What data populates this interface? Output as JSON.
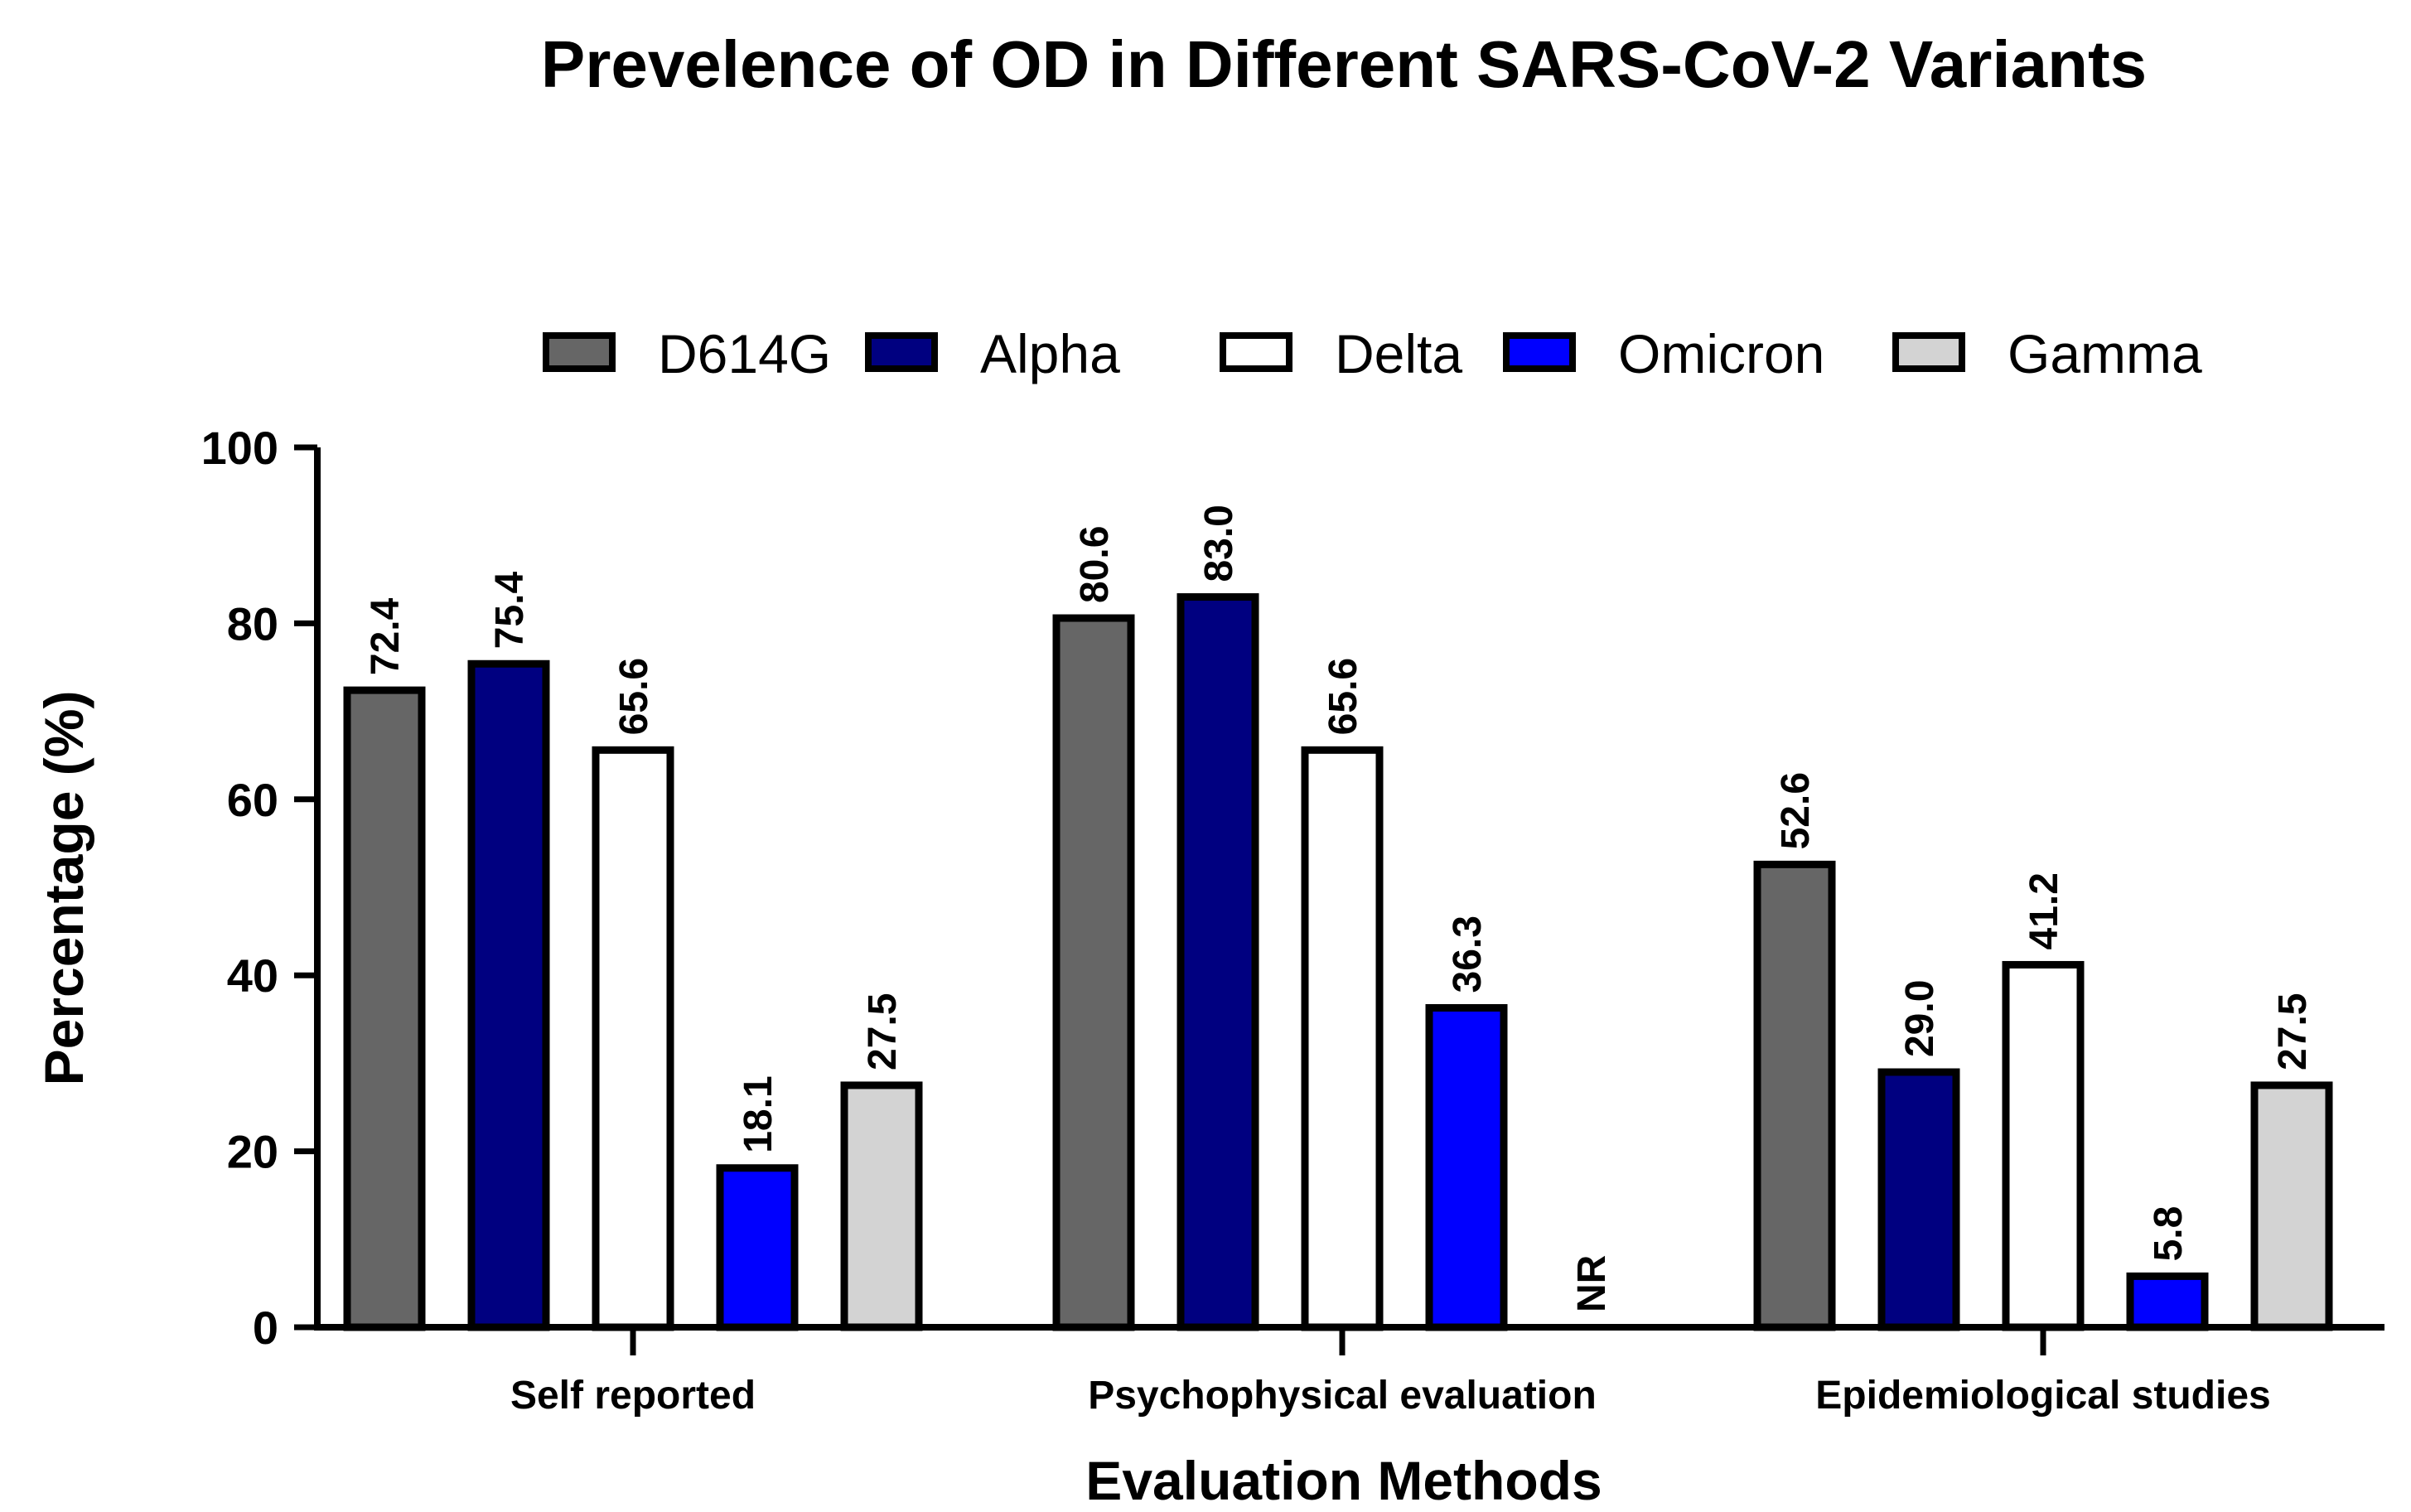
{
  "chart_data": {
    "type": "bar",
    "title": "Prevelence of OD in Different SARS-CoV-2 Variants",
    "xlabel": "Evaluation Methods",
    "ylabel": "Percentage (%)",
    "ylim": [
      0,
      100
    ],
    "yticks": [
      "0",
      "20",
      "40",
      "60",
      "80",
      "100"
    ],
    "grid": false,
    "legend_position": "top",
    "categories": [
      "Self reported",
      "Psychophysical evaluation",
      "Epidemiological studies"
    ],
    "series": [
      {
        "name": "D614G",
        "color": "#666666",
        "values": [
          72.4,
          80.6,
          52.6
        ],
        "labels": [
          "72.4",
          "80.6",
          "52.6"
        ]
      },
      {
        "name": "Alpha",
        "color": "#000080",
        "values": [
          75.4,
          83.0,
          29.0
        ],
        "labels": [
          "75.4",
          "83.0",
          "29.0"
        ]
      },
      {
        "name": "Delta",
        "color": "#ffffff",
        "values": [
          65.6,
          65.6,
          41.2
        ],
        "labels": [
          "65.6",
          "65.6",
          "41.2"
        ]
      },
      {
        "name": "Omicron",
        "color": "#0000ff",
        "values": [
          18.1,
          36.3,
          5.8
        ],
        "labels": [
          "18.1",
          "36.3",
          "5.8"
        ]
      },
      {
        "name": "Gamma",
        "color": "#d3d3d3",
        "values": [
          27.5,
          null,
          27.5
        ],
        "labels": [
          "27.5",
          "NR",
          "27.5"
        ]
      }
    ]
  }
}
